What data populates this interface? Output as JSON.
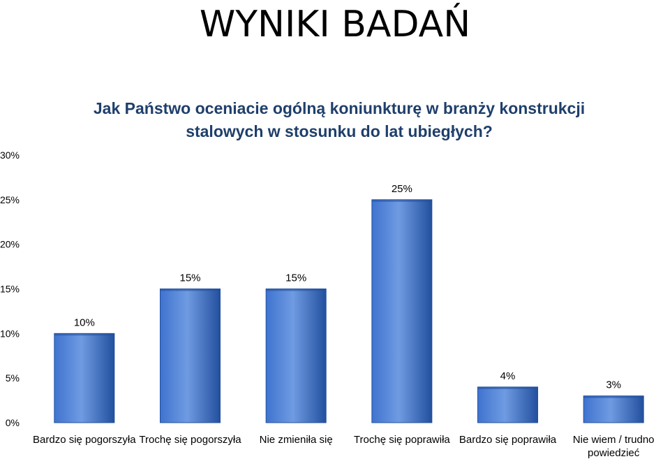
{
  "slide": {
    "title": "WYNIKI BADAŃ"
  },
  "colors": {
    "bar_light": "#6f9be2",
    "bar_mid": "#3f73cf",
    "bar_dark": "#23509e",
    "title_text": "#1f3f6b"
  },
  "chart_data": {
    "type": "bar",
    "title_lines": [
      "Jak Państwo oceniacie ogólną koniunkturę w branży konstrukcji",
      "stalowych w stosunku do lat ubiegłych?"
    ],
    "categories": [
      [
        "Bardzo się pogorszyła"
      ],
      [
        "Trochę się pogorszyła"
      ],
      [
        "Nie zmieniła się"
      ],
      [
        "Trochę się poprawiła"
      ],
      [
        "Bardzo się poprawiła"
      ],
      [
        "Nie wiem / trudno",
        "powiedzieć"
      ]
    ],
    "values": [
      10,
      15,
      15,
      25,
      4,
      3
    ],
    "value_labels": [
      "10%",
      "15%",
      "15%",
      "25%",
      "4%",
      "3%"
    ],
    "y_ticks": [
      0,
      5,
      10,
      15,
      20,
      25,
      30
    ],
    "y_tick_labels": [
      "0%",
      "5%",
      "10%",
      "15%",
      "20%",
      "25%",
      "30%"
    ],
    "ylim": [
      0,
      30
    ],
    "grid": false,
    "legend": "none"
  }
}
